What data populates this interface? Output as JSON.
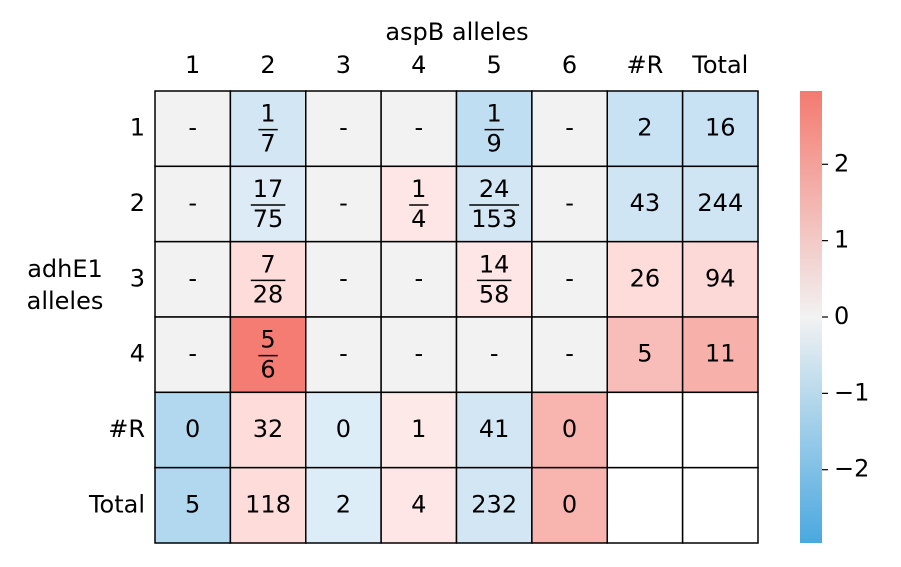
{
  "chart_data": {
    "type": "heatmap",
    "title": "aspB alleles",
    "ylabel": [
      "adhE1",
      "alleles"
    ],
    "columns": [
      "1",
      "2",
      "3",
      "4",
      "5",
      "6",
      "#R",
      "Total"
    ],
    "rows": [
      "1",
      "2",
      "3",
      "4",
      "#R",
      "Total"
    ],
    "cells": [
      [
        {
          "text": "-",
          "color": "#f2f2f2"
        },
        {
          "num": "1",
          "den": "7",
          "color": "#d2e6f4"
        },
        {
          "text": "-",
          "color": "#f2f2f2"
        },
        {
          "text": "-",
          "color": "#f2f2f2"
        },
        {
          "num": "1",
          "den": "9",
          "color": "#c0def2"
        },
        {
          "text": "-",
          "color": "#f2f2f2"
        },
        {
          "text": "2",
          "color": "#c9e2f3"
        },
        {
          "text": "16",
          "color": "#c9e2f3"
        }
      ],
      [
        {
          "text": "-",
          "color": "#f2f2f2"
        },
        {
          "num": "17",
          "den": "75",
          "color": "#dcebf5"
        },
        {
          "text": "-",
          "color": "#f2f2f2"
        },
        {
          "num": "1",
          "den": "4",
          "color": "#fde6e5"
        },
        {
          "num": "24",
          "den": "153",
          "color": "#d2e6f4"
        },
        {
          "text": "-",
          "color": "#f2f2f2"
        },
        {
          "text": "43",
          "color": "#d0e5f4"
        },
        {
          "text": "244",
          "color": "#d0e5f4"
        }
      ],
      [
        {
          "text": "-",
          "color": "#f2f2f2"
        },
        {
          "num": "7",
          "den": "28",
          "color": "#fddcda"
        },
        {
          "text": "-",
          "color": "#f2f2f2"
        },
        {
          "text": "-",
          "color": "#f2f2f2"
        },
        {
          "num": "14",
          "den": "58",
          "color": "#fde6e5"
        },
        {
          "text": "-",
          "color": "#f2f2f2"
        },
        {
          "text": "26",
          "color": "#fddcda"
        },
        {
          "text": "94",
          "color": "#fcd8d6"
        }
      ],
      [
        {
          "text": "-",
          "color": "#f2f2f2"
        },
        {
          "num": "5",
          "den": "6",
          "color": "#f47c72"
        },
        {
          "text": "-",
          "color": "#f2f2f2"
        },
        {
          "text": "-",
          "color": "#f2f2f2"
        },
        {
          "text": "-",
          "color": "#f2f2f2"
        },
        {
          "text": "-",
          "color": "#f2f2f2"
        },
        {
          "text": "5",
          "color": "#f9bdb9"
        },
        {
          "text": "11",
          "color": "#f8b0ab"
        }
      ],
      [
        {
          "text": "0",
          "color": "#b2d8f0"
        },
        {
          "text": "32",
          "color": "#fddcda"
        },
        {
          "text": "0",
          "color": "#ddedf7"
        },
        {
          "text": "1",
          "color": "#fde9e8"
        },
        {
          "text": "41",
          "color": "#d2e6f4"
        },
        {
          "text": "0",
          "color": "#f8b4af"
        },
        {
          "color": "#ffffff"
        },
        {
          "color": "#ffffff"
        }
      ],
      [
        {
          "text": "5",
          "color": "#b2d8f0"
        },
        {
          "text": "118",
          "color": "#fddcda"
        },
        {
          "text": "2",
          "color": "#ddedf7"
        },
        {
          "text": "4",
          "color": "#fde6e5"
        },
        {
          "text": "232",
          "color": "#d2e6f4"
        },
        {
          "text": "0",
          "color": "#f8b4af"
        },
        {
          "color": "#ffffff"
        },
        {
          "color": "#ffffff"
        }
      ]
    ],
    "colorbar": {
      "colors": [
        "#4aa8e0",
        "#f2f2f2",
        "#f47a70"
      ],
      "ylim": [
        -2.96,
        2.96
      ],
      "yticks": [
        {
          "value": -2,
          "label": "−2"
        },
        {
          "value": -1,
          "label": "−1"
        },
        0,
        1,
        2
      ]
    }
  }
}
